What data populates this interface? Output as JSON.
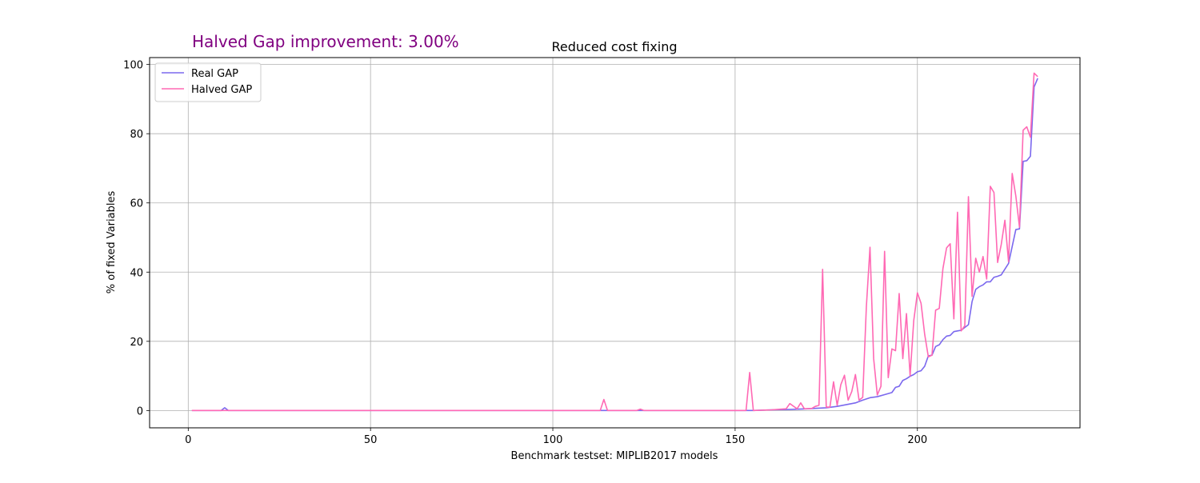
{
  "figure_annotation": "Halved Gap improvement: 3.00%",
  "chart_data": {
    "type": "line",
    "title": "Reduced cost fixing",
    "xlabel": "Benchmark testset: MIPLIB2017 models",
    "ylabel": "% of fixed Variables",
    "xlim": [
      -10.6,
      244.6
    ],
    "ylim": [
      -5,
      102
    ],
    "xticks": [
      0,
      50,
      100,
      150,
      200
    ],
    "yticks": [
      0,
      20,
      40,
      60,
      80,
      100
    ],
    "grid": true,
    "legend_position": "upper-left",
    "series": [
      {
        "name": "Real GAP",
        "color": "#7b68ee",
        "points": [
          [
            1,
            0
          ],
          [
            9,
            0
          ],
          [
            10,
            0.8
          ],
          [
            11,
            0
          ],
          [
            155,
            0
          ],
          [
            160,
            0.2
          ],
          [
            165,
            0.3
          ],
          [
            170,
            0.5
          ],
          [
            175,
            0.8
          ],
          [
            178,
            1.2
          ],
          [
            180,
            1.6
          ],
          [
            183,
            2.2
          ],
          [
            185,
            3
          ],
          [
            187,
            3.7
          ],
          [
            189,
            4
          ],
          [
            191,
            4.6
          ],
          [
            193,
            5.2
          ],
          [
            194,
            6.7
          ],
          [
            195,
            7
          ],
          [
            196,
            8.7
          ],
          [
            197,
            9.2
          ],
          [
            198,
            9.9
          ],
          [
            199,
            10.4
          ],
          [
            200,
            11.2
          ],
          [
            201,
            11.5
          ],
          [
            202,
            12.8
          ],
          [
            203,
            15.8
          ],
          [
            204,
            16
          ],
          [
            205,
            18.5
          ],
          [
            206,
            19
          ],
          [
            207,
            20.5
          ],
          [
            208,
            21.5
          ],
          [
            209,
            21.7
          ],
          [
            210,
            22.8
          ],
          [
            211,
            23
          ],
          [
            212,
            23.2
          ],
          [
            213,
            24
          ],
          [
            214,
            24.8
          ],
          [
            215,
            31.5
          ],
          [
            216,
            35
          ],
          [
            217,
            35.8
          ],
          [
            218,
            36.3
          ],
          [
            219,
            37.2
          ],
          [
            220,
            37.2
          ],
          [
            221,
            38.5
          ],
          [
            222,
            38.8
          ],
          [
            223,
            39.2
          ],
          [
            225,
            42.5
          ],
          [
            227,
            52.3
          ],
          [
            228,
            52.5
          ],
          [
            229,
            72
          ],
          [
            230,
            72.2
          ],
          [
            231,
            73.5
          ],
          [
            232,
            93.5
          ],
          [
            233,
            96
          ]
        ]
      },
      {
        "name": "Halved GAP",
        "color": "#ff69b4",
        "points": [
          [
            1,
            0
          ],
          [
            113,
            0
          ],
          [
            114,
            3.2
          ],
          [
            115,
            0
          ],
          [
            123,
            0
          ],
          [
            124,
            0.4
          ],
          [
            125,
            0
          ],
          [
            153,
            0
          ],
          [
            154,
            11
          ],
          [
            155,
            0
          ],
          [
            160,
            0.2
          ],
          [
            164,
            0.5
          ],
          [
            165,
            2
          ],
          [
            167,
            0.5
          ],
          [
            168,
            2.2
          ],
          [
            169,
            0.5
          ],
          [
            171,
            0.6
          ],
          [
            172,
            1.2
          ],
          [
            173,
            1.5
          ],
          [
            174,
            40.8
          ],
          [
            175,
            1
          ],
          [
            176,
            1
          ],
          [
            177,
            8.3
          ],
          [
            178,
            1.5
          ],
          [
            179,
            7.5
          ],
          [
            180,
            10.2
          ],
          [
            181,
            3
          ],
          [
            182,
            5.5
          ],
          [
            183,
            10.4
          ],
          [
            184,
            3
          ],
          [
            185,
            3.8
          ],
          [
            186,
            30
          ],
          [
            187,
            47.2
          ],
          [
            188,
            15
          ],
          [
            189,
            4.5
          ],
          [
            190,
            7
          ],
          [
            191,
            46
          ],
          [
            192,
            9.5
          ],
          [
            193,
            17.8
          ],
          [
            194,
            17.3
          ],
          [
            195,
            33.8
          ],
          [
            196,
            15
          ],
          [
            197,
            28
          ],
          [
            198,
            10
          ],
          [
            199,
            26
          ],
          [
            200,
            34
          ],
          [
            201,
            31
          ],
          [
            202,
            22
          ],
          [
            203,
            15.5
          ],
          [
            204,
            16
          ],
          [
            205,
            29
          ],
          [
            206,
            29.5
          ],
          [
            207,
            41
          ],
          [
            208,
            47
          ],
          [
            209,
            48.2
          ],
          [
            210,
            26.5
          ],
          [
            211,
            57.3
          ],
          [
            212,
            23
          ],
          [
            213,
            24.5
          ],
          [
            214,
            61.8
          ],
          [
            215,
            33
          ],
          [
            216,
            44
          ],
          [
            217,
            40
          ],
          [
            218,
            44.5
          ],
          [
            219,
            38
          ],
          [
            220,
            64.8
          ],
          [
            221,
            63
          ],
          [
            222,
            42.8
          ],
          [
            223,
            48
          ],
          [
            224,
            55
          ],
          [
            225,
            43
          ],
          [
            226,
            68.5
          ],
          [
            227,
            62
          ],
          [
            228,
            53
          ],
          [
            229,
            81
          ],
          [
            230,
            82
          ],
          [
            231,
            79
          ],
          [
            232,
            97.5
          ],
          [
            233,
            96.5
          ]
        ]
      }
    ]
  }
}
